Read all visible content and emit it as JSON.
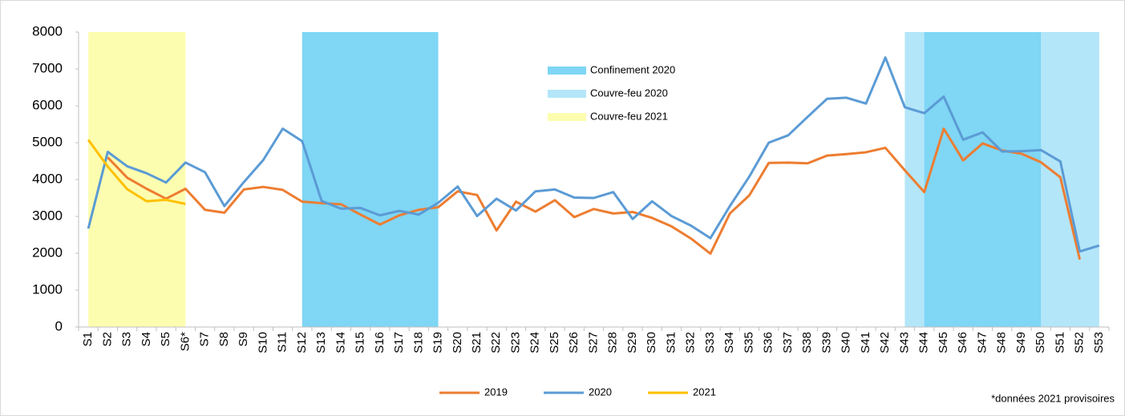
{
  "chart_data": {
    "type": "line",
    "categories": [
      "S1",
      "S2",
      "S3",
      "S4",
      "S5",
      "S6*",
      "S7",
      "S8",
      "S9",
      "S10",
      "S11",
      "S12",
      "S13",
      "S14",
      "S15",
      "S16",
      "S17",
      "S18",
      "S19",
      "S20",
      "S21",
      "S22",
      "S23",
      "S24",
      "S25",
      "S26",
      "S27",
      "S28",
      "S29",
      "S30",
      "S31",
      "S32",
      "S33",
      "S34",
      "S35",
      "S36",
      "S37",
      "S38",
      "S39",
      "S40",
      "S41",
      "S42",
      "S43",
      "S44",
      "S45",
      "S46",
      "S47",
      "S48",
      "S49",
      "S50",
      "S51",
      "S52",
      "S53"
    ],
    "series": [
      {
        "name": "2019",
        "color": "#ed7d31",
        "values": [
          null,
          4600,
          4050,
          3750,
          3480,
          3750,
          3180,
          3100,
          3730,
          3800,
          3720,
          3400,
          3360,
          3330,
          3050,
          2780,
          3030,
          3180,
          3250,
          3680,
          3580,
          2620,
          3400,
          3130,
          3440,
          2980,
          3200,
          3080,
          3120,
          2960,
          2730,
          2400,
          1990,
          3080,
          3570,
          4450,
          4460,
          4440,
          4650,
          4690,
          4740,
          4860,
          4250,
          3660,
          5380,
          4520,
          4980,
          4790,
          4700,
          4470,
          4060,
          1830,
          null
        ]
      },
      {
        "name": "2020",
        "color": "#5b9bd5",
        "values": [
          2670,
          4750,
          4360,
          4170,
          3920,
          4460,
          4200,
          3280,
          3930,
          4530,
          5380,
          5040,
          3420,
          3210,
          3230,
          3030,
          3150,
          3050,
          3370,
          3810,
          3010,
          3480,
          3160,
          3680,
          3730,
          3510,
          3500,
          3660,
          2930,
          3410,
          3010,
          2750,
          2410,
          3280,
          4080,
          5000,
          5200,
          5700,
          6190,
          6220,
          6060,
          7310,
          5960,
          5800,
          6250,
          5080,
          5280,
          4760,
          4770,
          4800,
          4490,
          2050,
          2210
        ]
      },
      {
        "name": "2021",
        "color": "#ffc000",
        "values": [
          5080,
          4350,
          3740,
          3410,
          3450,
          3340,
          null,
          null,
          null,
          null,
          null,
          null,
          null,
          null,
          null,
          null,
          null,
          null,
          null,
          null,
          null,
          null,
          null,
          null,
          null,
          null,
          null,
          null,
          null,
          null,
          null,
          null,
          null,
          null,
          null,
          null,
          null,
          null,
          null,
          null,
          null,
          null,
          null,
          null,
          null,
          null,
          null,
          null,
          null,
          null,
          null,
          null,
          null
        ]
      }
    ],
    "periods": [
      {
        "name": "Couvre-feu 2020",
        "color": "#b3e6f8",
        "ranges": [
          [
            "S43",
            "S53"
          ]
        ]
      },
      {
        "name": "Confinement 2020",
        "color": "#7fd6f5",
        "ranges": [
          [
            "S12",
            "S19"
          ],
          [
            "S44",
            "S50"
          ]
        ]
      },
      {
        "name": "Couvre-feu 2021",
        "color": "#fdfdb0",
        "ranges": [
          [
            "S1",
            "S6*"
          ]
        ]
      }
    ],
    "legend_order": [
      1,
      0,
      2
    ],
    "ylim": [
      0,
      8000
    ],
    "yticks": [
      0,
      1000,
      2000,
      3000,
      4000,
      5000,
      6000,
      7000,
      8000
    ],
    "footnote": "*données 2021 provisoires"
  }
}
